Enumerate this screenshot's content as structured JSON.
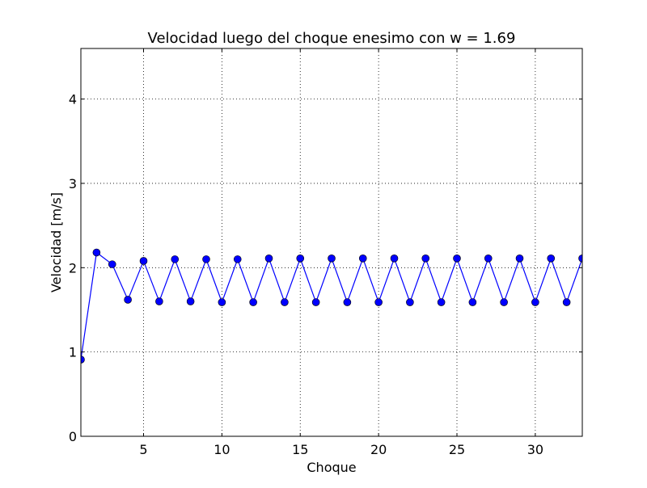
{
  "chart_data": {
    "type": "line",
    "title": "Velocidad luego del choque enesimo con w = 1.69",
    "xlabel": "Choque",
    "ylabel": "Velocidad [m/s]",
    "xlim": [
      1,
      33
    ],
    "ylim": [
      0,
      4.6
    ],
    "xticks": [
      5,
      10,
      15,
      20,
      25,
      30
    ],
    "yticks": [
      0,
      1,
      2,
      3,
      4
    ],
    "grid": true,
    "series": [
      {
        "color": "#0000ff",
        "marker": "circle",
        "x": [
          1,
          2,
          3,
          4,
          5,
          6,
          7,
          8,
          9,
          10,
          11,
          12,
          13,
          14,
          15,
          16,
          17,
          18,
          19,
          20,
          21,
          22,
          23,
          24,
          25,
          26,
          27,
          28,
          29,
          30,
          31,
          32,
          33
        ],
        "y": [
          0.91,
          2.18,
          2.04,
          1.62,
          2.08,
          1.6,
          2.1,
          1.6,
          2.1,
          1.59,
          2.1,
          1.59,
          2.11,
          1.59,
          2.11,
          1.59,
          2.11,
          1.59,
          2.11,
          1.59,
          2.11,
          1.59,
          2.11,
          1.59,
          2.11,
          1.59,
          2.11,
          1.59,
          2.11,
          1.59,
          2.11,
          1.59,
          2.11
        ]
      }
    ]
  }
}
